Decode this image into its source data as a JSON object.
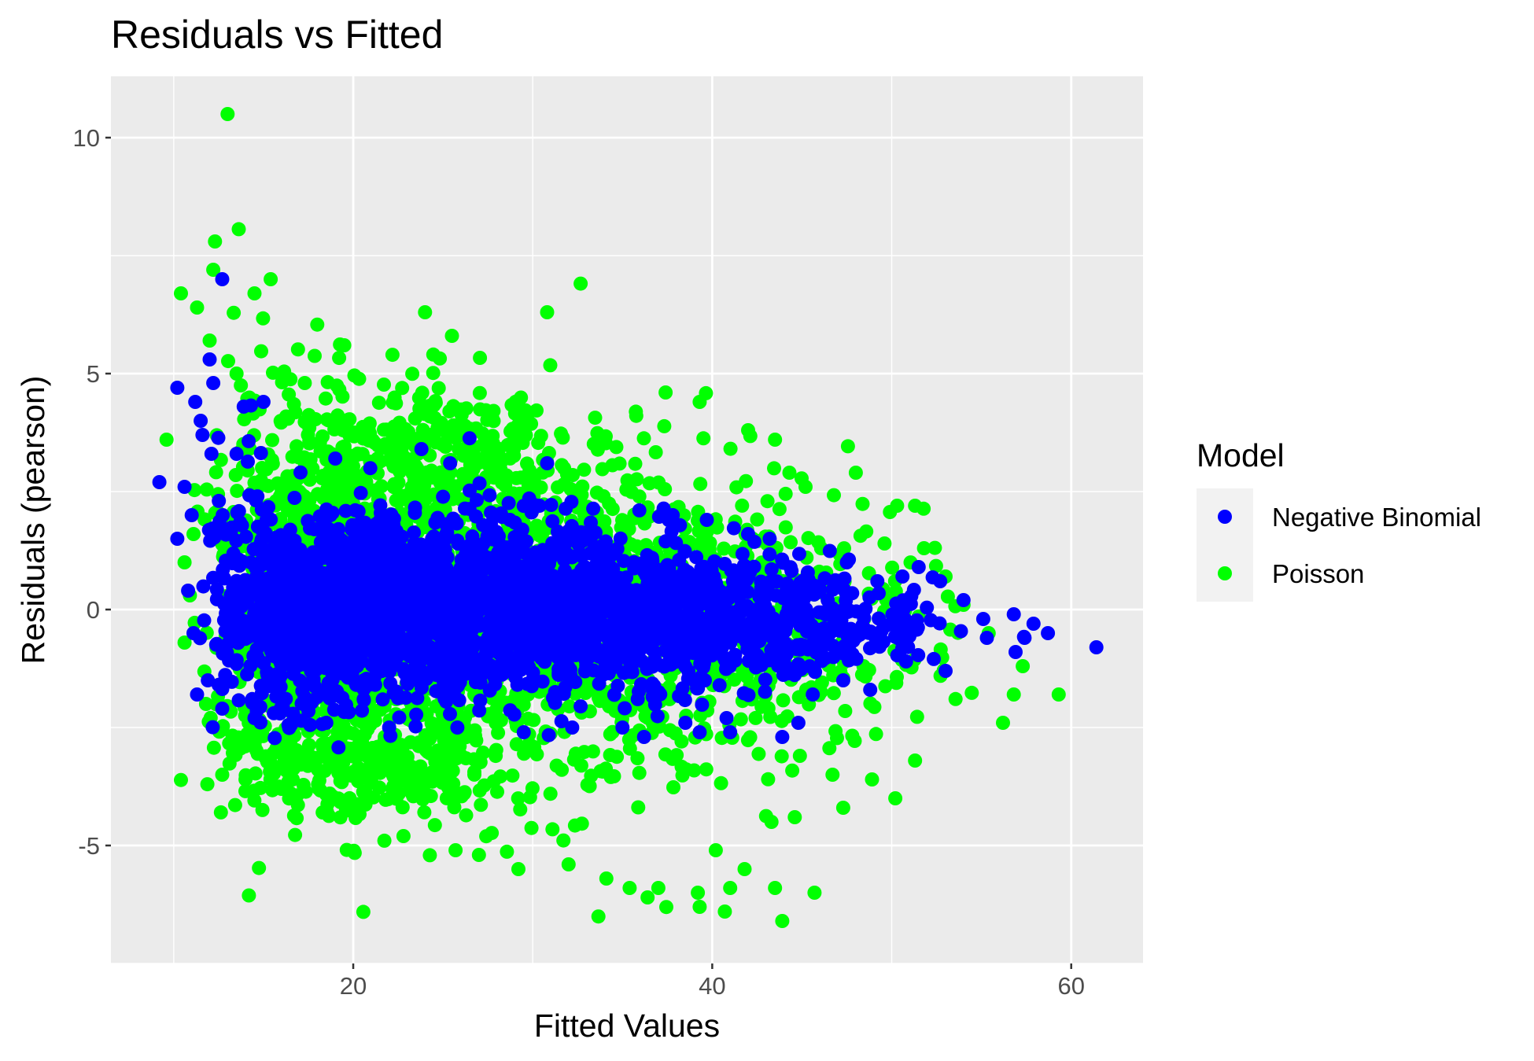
{
  "chart_data": {
    "type": "scatter",
    "title": "Residuals vs Fitted",
    "xlabel": "Fitted Values",
    "ylabel": "Residuals (pearson)",
    "xlim": [
      6.5,
      64.0
    ],
    "ylim": [
      -7.5,
      11.3
    ],
    "x_ticks": [
      20,
      40,
      60
    ],
    "x_tick_labels": [
      "20",
      "40",
      "60"
    ],
    "y_ticks": [
      -5,
      0,
      5,
      10
    ],
    "y_tick_labels": [
      "-5",
      "0",
      "5",
      "10"
    ],
    "grid": true,
    "legend": {
      "title": "Model",
      "position": "right"
    },
    "series": [
      {
        "name": "Poisson",
        "color": "#00ff00",
        "points": [
          [
            13.0,
            10.5
          ],
          [
            12.3,
            7.8
          ],
          [
            12.2,
            7.2
          ],
          [
            10.4,
            6.7
          ],
          [
            11.3,
            6.4
          ],
          [
            14.5,
            6.7
          ],
          [
            15.4,
            7.0
          ],
          [
            24.0,
            6.3
          ],
          [
            30.8,
            6.3
          ],
          [
            25.5,
            5.8
          ],
          [
            19.5,
            5.6
          ],
          [
            12.0,
            5.7
          ],
          [
            13.5,
            5.0
          ],
          [
            9.6,
            3.6
          ],
          [
            17.3,
            4.8
          ],
          [
            37.4,
            4.6
          ],
          [
            39.3,
            4.4
          ],
          [
            42.0,
            3.8
          ],
          [
            43.5,
            3.6
          ],
          [
            44.3,
            2.9
          ],
          [
            45.2,
            2.6
          ],
          [
            48.0,
            2.9
          ],
          [
            50.3,
            2.2
          ],
          [
            51.3,
            2.2
          ],
          [
            49.6,
            1.4
          ],
          [
            51.8,
            1.3
          ],
          [
            53.0,
            0.7
          ],
          [
            54.0,
            0.1
          ],
          [
            55.4,
            -0.5
          ],
          [
            56.8,
            -1.8
          ],
          [
            57.3,
            -1.2
          ],
          [
            59.3,
            -1.8
          ],
          [
            56.2,
            -2.4
          ],
          [
            51.3,
            -3.2
          ],
          [
            50.2,
            -4.0
          ],
          [
            48.9,
            -3.6
          ],
          [
            47.3,
            -4.2
          ],
          [
            46.7,
            -3.5
          ],
          [
            44.6,
            -4.4
          ],
          [
            43.3,
            -4.5
          ],
          [
            41.8,
            -5.5
          ],
          [
            41.0,
            -5.9
          ],
          [
            40.2,
            -5.1
          ],
          [
            39.2,
            -6.0
          ],
          [
            39.3,
            -6.3
          ],
          [
            40.7,
            -6.4
          ],
          [
            43.5,
            -5.9
          ],
          [
            45.7,
            -6.0
          ],
          [
            43.9,
            -6.6
          ],
          [
            35.4,
            -5.9
          ],
          [
            34.1,
            -5.7
          ],
          [
            37.0,
            -5.9
          ],
          [
            36.4,
            -6.1
          ],
          [
            32.0,
            -5.4
          ],
          [
            29.2,
            -5.5
          ],
          [
            25.7,
            -5.1
          ],
          [
            27.0,
            -5.2
          ],
          [
            22.8,
            -4.8
          ],
          [
            18.3,
            -4.3
          ],
          [
            16.0,
            -3.8
          ],
          [
            14.0,
            -3.6
          ],
          [
            12.7,
            -3.5
          ],
          [
            11.8,
            -2.0
          ],
          [
            10.6,
            -0.7
          ],
          [
            10.9,
            0.3
          ],
          [
            10.6,
            1.0
          ],
          [
            11.1,
            1.6
          ]
        ],
        "clusters": [
          {
            "cx": 18.5,
            "cy": 0.3,
            "sx": 2.2,
            "sy": 1.85,
            "n": 550
          },
          {
            "cx": 23.5,
            "cy": 0.2,
            "sx": 3.4,
            "sy": 2.0,
            "n": 700
          },
          {
            "cx": 30.0,
            "cy": 0.2,
            "sx": 3.8,
            "sy": 1.95,
            "n": 520
          },
          {
            "cx": 36.5,
            "cy": 0.0,
            "sx": 3.5,
            "sy": 1.7,
            "n": 340
          },
          {
            "cx": 43.0,
            "cy": -0.2,
            "sx": 3.2,
            "sy": 1.45,
            "n": 180
          },
          {
            "cx": 14.5,
            "cy": 0.3,
            "sx": 1.4,
            "sy": 2.3,
            "n": 170
          },
          {
            "cx": 49.0,
            "cy": -0.3,
            "sx": 2.8,
            "sy": 1.0,
            "n": 60
          },
          {
            "cx": 21.0,
            "cy": -3.3,
            "sx": 3.5,
            "sy": 0.55,
            "n": 220
          },
          {
            "cx": 24.0,
            "cy": 3.4,
            "sx": 4.0,
            "sy": 0.7,
            "n": 180
          }
        ]
      },
      {
        "name": "Negative Binomial",
        "color": "#0000ff",
        "points": [
          [
            12.7,
            7.0
          ],
          [
            9.2,
            2.7
          ],
          [
            10.2,
            4.7
          ],
          [
            11.2,
            4.4
          ],
          [
            12.0,
            5.3
          ],
          [
            12.2,
            4.8
          ],
          [
            13.9,
            4.3
          ],
          [
            15.0,
            4.4
          ],
          [
            11.6,
            3.7
          ],
          [
            11.5,
            4.0
          ],
          [
            12.1,
            3.3
          ],
          [
            13.5,
            3.3
          ],
          [
            10.6,
            2.6
          ],
          [
            10.2,
            1.5
          ],
          [
            11.0,
            2.0
          ],
          [
            10.8,
            0.4
          ],
          [
            11.1,
            -0.5
          ],
          [
            11.3,
            -1.8
          ],
          [
            11.9,
            -1.5
          ],
          [
            12.7,
            -2.1
          ],
          [
            23.8,
            3.4
          ],
          [
            19.0,
            3.2
          ],
          [
            30.8,
            3.1
          ],
          [
            25.4,
            3.1
          ],
          [
            37.8,
            2.0
          ],
          [
            39.7,
            1.9
          ],
          [
            42.0,
            1.6
          ],
          [
            43.2,
            1.5
          ],
          [
            47.5,
            1.0
          ],
          [
            49.2,
            0.6
          ],
          [
            50.6,
            0.7
          ],
          [
            51.5,
            0.9
          ],
          [
            52.7,
            0.6
          ],
          [
            54.0,
            0.2
          ],
          [
            55.1,
            -0.2
          ],
          [
            56.8,
            -0.1
          ],
          [
            57.4,
            -0.6
          ],
          [
            57.9,
            -0.3
          ],
          [
            58.7,
            -0.5
          ],
          [
            61.4,
            -0.8
          ],
          [
            56.9,
            -0.9
          ],
          [
            55.3,
            -0.6
          ],
          [
            53.0,
            -1.3
          ],
          [
            50.8,
            -1.1
          ],
          [
            48.8,
            -1.7
          ],
          [
            47.3,
            -1.5
          ],
          [
            45.6,
            -1.8
          ],
          [
            44.8,
            -2.4
          ],
          [
            43.9,
            -2.7
          ],
          [
            41.0,
            -2.6
          ],
          [
            40.8,
            -2.3
          ],
          [
            39.3,
            -2.6
          ],
          [
            38.5,
            -2.4
          ],
          [
            36.2,
            -2.7
          ],
          [
            35.0,
            -2.5
          ],
          [
            32.2,
            -2.5
          ],
          [
            29.5,
            -2.6
          ],
          [
            25.8,
            -2.5
          ],
          [
            22.0,
            -2.5
          ],
          [
            18.5,
            -2.4
          ],
          [
            14.5,
            -2.3
          ]
        ],
        "clusters": [
          {
            "cx": 19.0,
            "cy": 0.0,
            "sx": 2.3,
            "sy": 0.9,
            "n": 650
          },
          {
            "cx": 24.5,
            "cy": 0.1,
            "sx": 3.4,
            "sy": 0.95,
            "n": 780
          },
          {
            "cx": 31.0,
            "cy": 0.0,
            "sx": 3.8,
            "sy": 0.9,
            "n": 600
          },
          {
            "cx": 37.5,
            "cy": -0.2,
            "sx": 3.3,
            "sy": 0.75,
            "n": 380
          },
          {
            "cx": 43.5,
            "cy": -0.3,
            "sx": 2.9,
            "sy": 0.6,
            "n": 220
          },
          {
            "cx": 15.5,
            "cy": 0.0,
            "sx": 1.0,
            "sy": 1.1,
            "n": 220
          },
          {
            "cx": 48.5,
            "cy": -0.3,
            "sx": 2.6,
            "sy": 0.45,
            "n": 80
          },
          {
            "cx": 13.0,
            "cy": 0.5,
            "sx": 1.0,
            "sy": 1.3,
            "n": 60
          }
        ]
      }
    ]
  }
}
